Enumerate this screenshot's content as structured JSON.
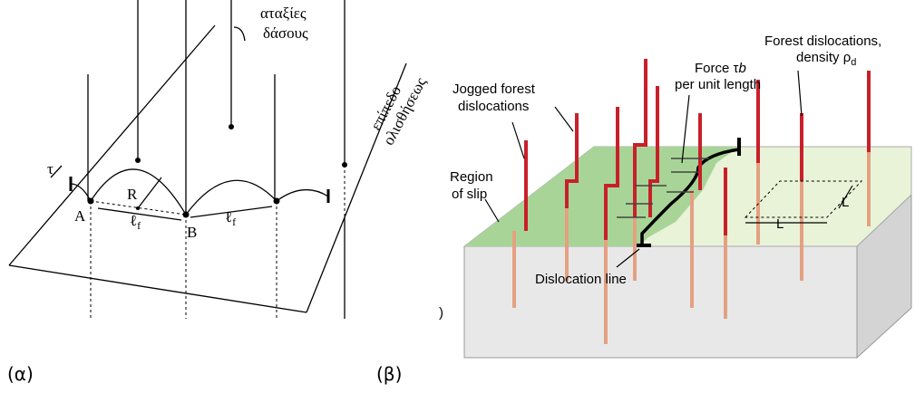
{
  "panel_a": {
    "caption": "(α)",
    "forest_label": [
      "αταξίες",
      "δάσους"
    ],
    "plane_label": [
      "επίπεδο",
      "ολισθήσεως"
    ],
    "tau": "τ",
    "radius": "R",
    "point_a": "A",
    "point_b": "B",
    "spacing_1": {
      "symbol": "ℓ",
      "sub": "f"
    },
    "spacing_2": {
      "symbol": "ℓ",
      "sub": "f"
    }
  },
  "panel_b": {
    "caption": "(β)",
    "cut_label": ")",
    "jogged": [
      "Jogged forest",
      "dislocations"
    ],
    "region": [
      "Region",
      "of slip"
    ],
    "force": {
      "line1_text": "Force ",
      "tau": "τ",
      "b": "b",
      "line2": "per unit length"
    },
    "forest": {
      "line1": "Forest dislocations,",
      "line2_text": "density ",
      "rho": "ρ",
      "sub": "d"
    },
    "dislocation_line": "Dislocation line",
    "length_1": "L",
    "length_2": "L"
  }
}
